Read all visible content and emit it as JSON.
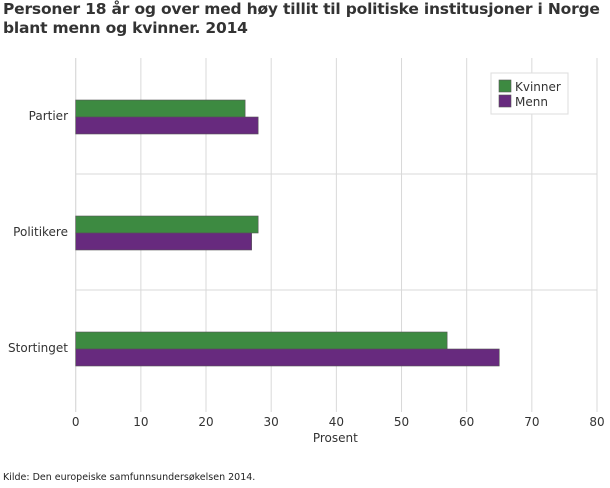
{
  "chart_data": {
    "type": "bar",
    "orientation": "horizontal",
    "title": "Personer 18 år og over med høy tillit til politiske institusjoner i Norge blant menn og kvinner. 2014",
    "categories": [
      "Partier",
      "Politikere",
      "Stortinget"
    ],
    "series": [
      {
        "name": "Kvinner",
        "color": "#3d8a41",
        "values": [
          26,
          28,
          57
        ]
      },
      {
        "name": "Menn",
        "color": "#672a7e",
        "values": [
          28,
          27,
          65
        ]
      }
    ],
    "xlabel": "Prosent",
    "xlim": [
      0,
      80
    ],
    "xticks": [
      0,
      10,
      20,
      30,
      40,
      50,
      60,
      70,
      80
    ],
    "grid": true,
    "legend_position": "top-right",
    "source": "Kilde: Den europeiske samfunnsundersøkelsen 2014."
  }
}
